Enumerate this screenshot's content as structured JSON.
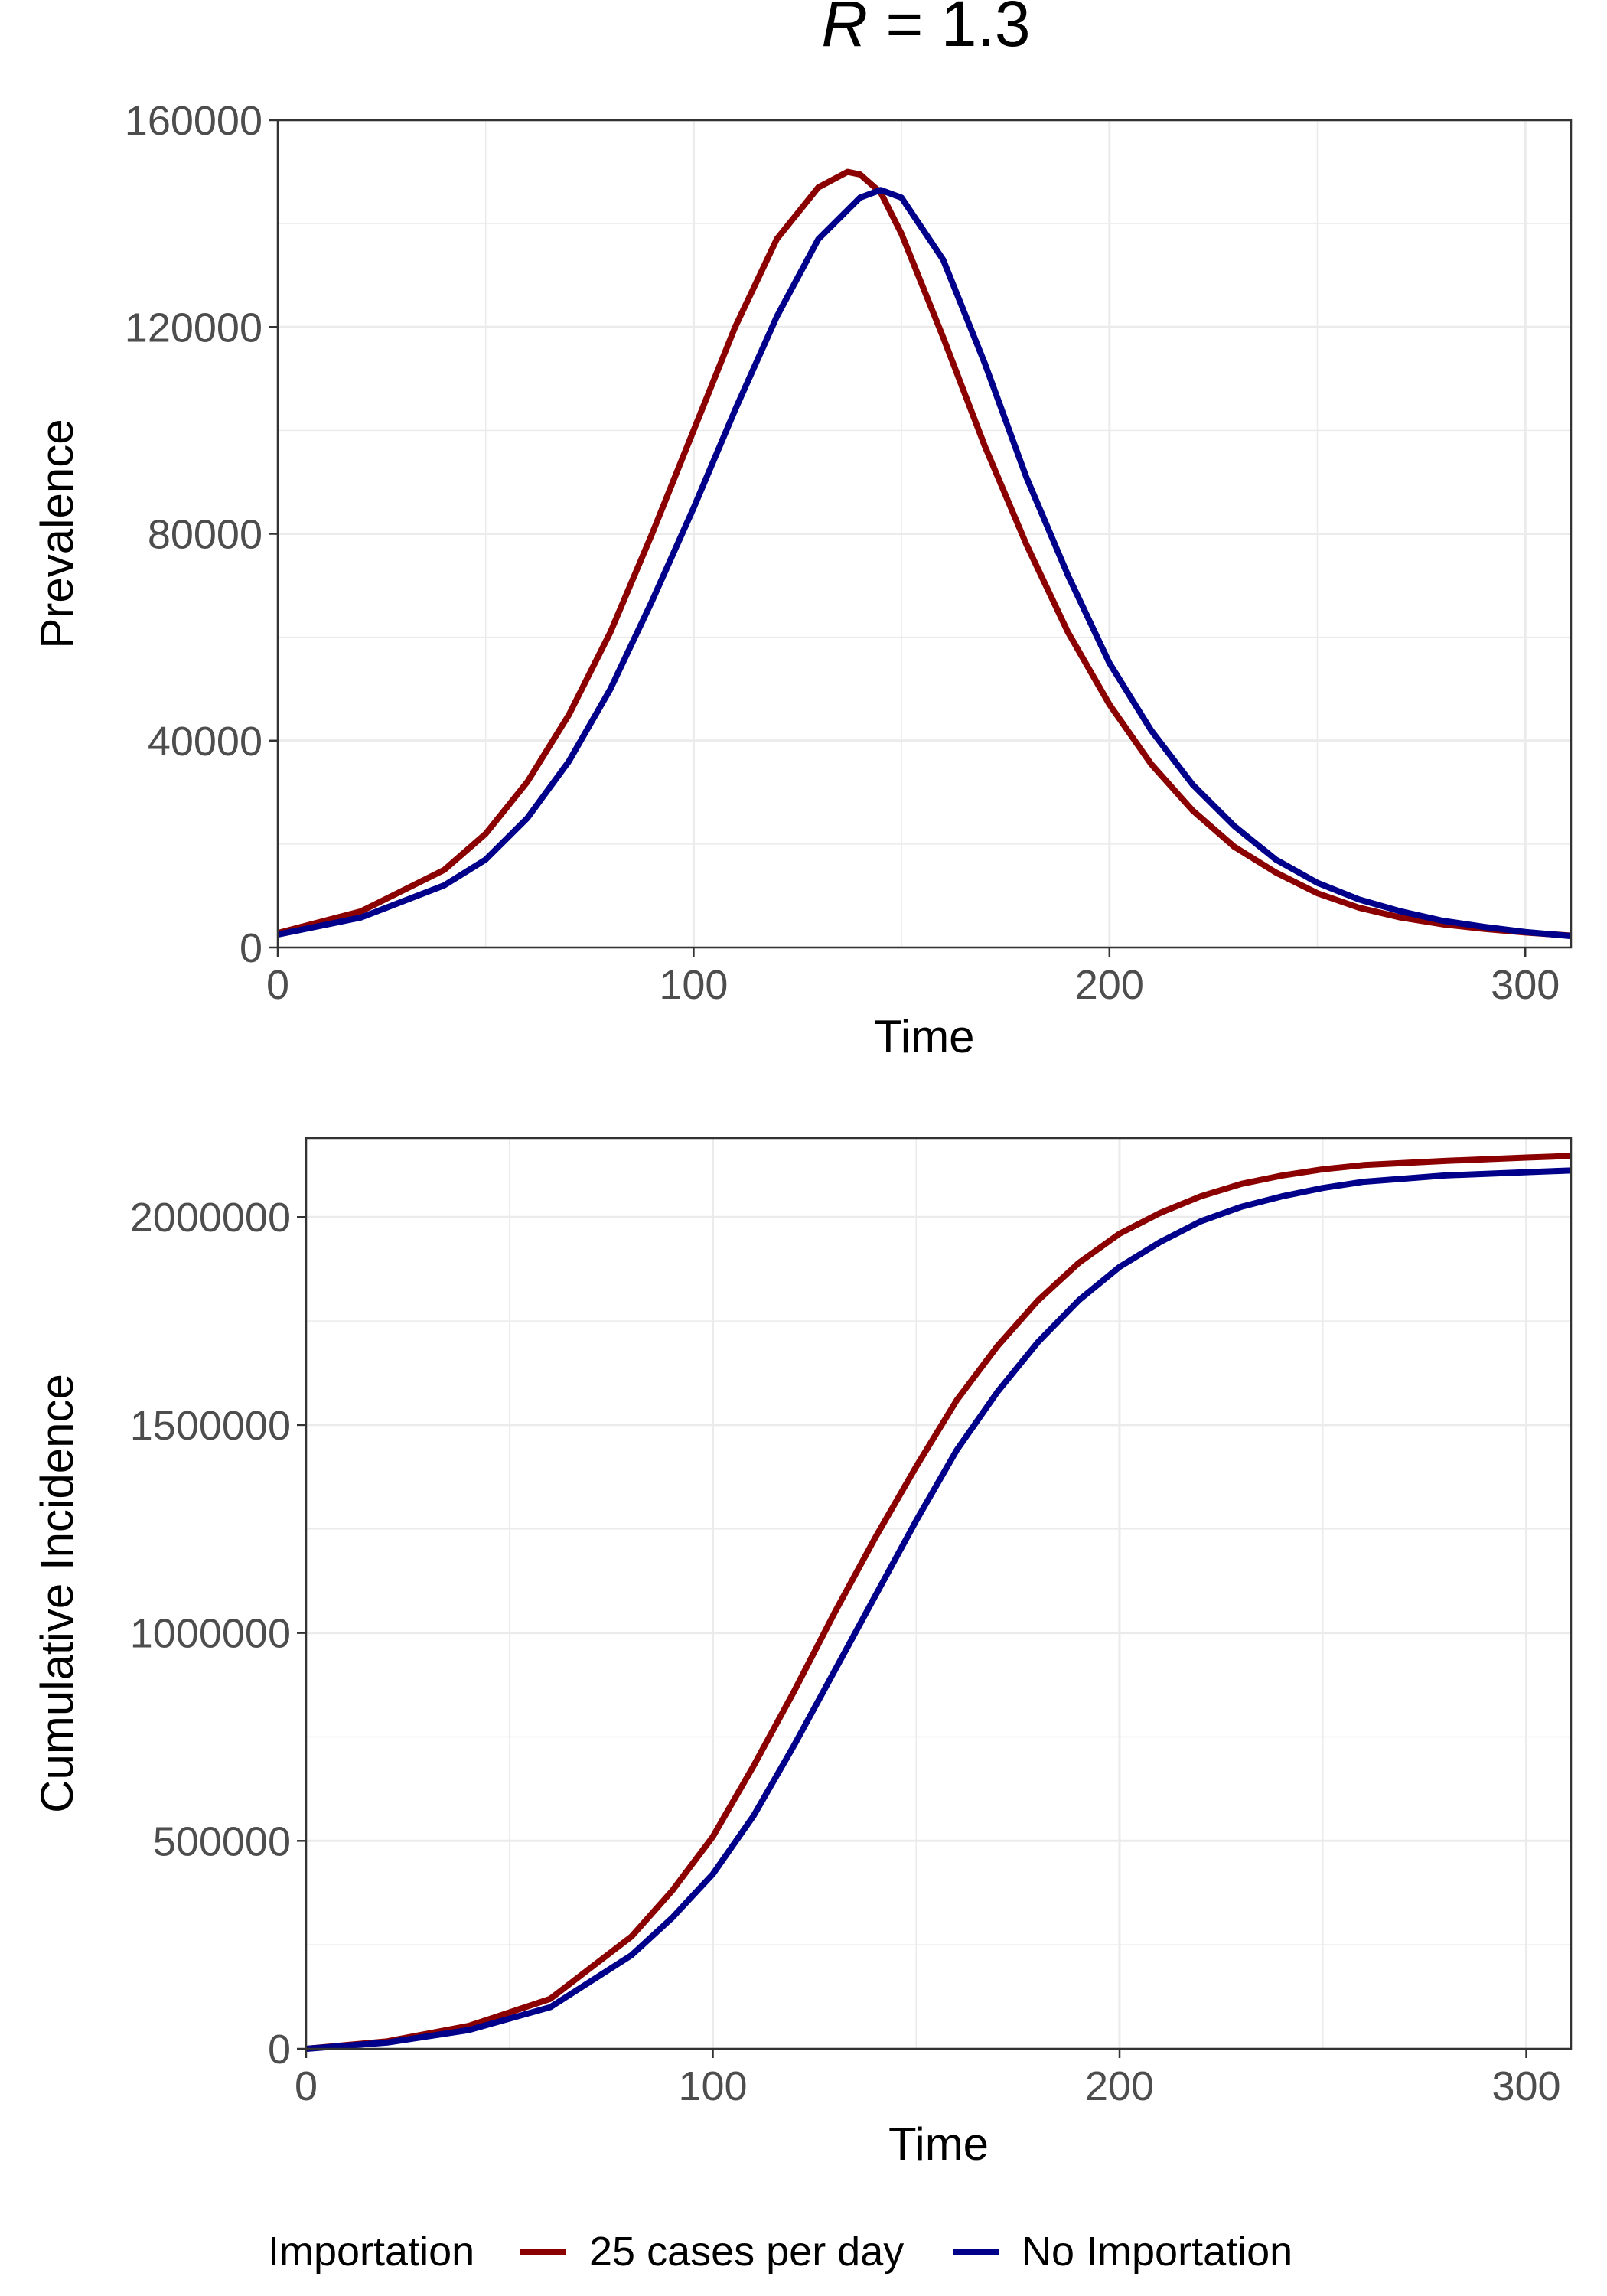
{
  "figure": {
    "title_var": "R",
    "title_rest": " = 1.3"
  },
  "colors": {
    "importation": "#8b0000",
    "no_importation": "#00008b"
  },
  "legend": {
    "title": "Importation",
    "items": [
      {
        "label": "25 cases per day",
        "color": "#8b0000"
      },
      {
        "label": "No Importation",
        "color": "#00008b"
      }
    ]
  },
  "chart_data": [
    {
      "type": "line",
      "title": "R = 1.3",
      "xlabel": "Time",
      "ylabel": "Prevalence",
      "xlim": [
        0,
        311
      ],
      "ylim": [
        0,
        160000
      ],
      "x_ticks": [
        0,
        100,
        200,
        300
      ],
      "y_ticks": [
        0,
        40000,
        80000,
        120000,
        160000
      ],
      "y_tick_labels": [
        "0",
        "40000",
        "80000",
        "120000",
        "160000"
      ],
      "grid": true,
      "series": [
        {
          "name": "25 cases per day",
          "color": "#8b0000",
          "x": [
            0,
            20,
            40,
            50,
            60,
            70,
            80,
            90,
            100,
            110,
            120,
            130,
            137,
            140,
            145,
            150,
            160,
            170,
            180,
            190,
            200,
            210,
            220,
            230,
            240,
            250,
            260,
            270,
            280,
            290,
            300,
            311
          ],
          "y": [
            2800,
            7000,
            15000,
            22000,
            32000,
            45000,
            61000,
            80000,
            100000,
            120000,
            137000,
            147000,
            150000,
            149500,
            146000,
            138000,
            118000,
            97000,
            78000,
            61000,
            47000,
            35500,
            26500,
            19500,
            14500,
            10500,
            7700,
            5800,
            4500,
            3600,
            2900,
            2300
          ]
        },
        {
          "name": "No Importation",
          "color": "#00008b",
          "x": [
            0,
            20,
            40,
            50,
            60,
            70,
            80,
            90,
            100,
            110,
            120,
            130,
            140,
            145,
            150,
            160,
            170,
            180,
            190,
            200,
            210,
            220,
            230,
            240,
            250,
            260,
            270,
            280,
            290,
            300,
            311
          ],
          "y": [
            2500,
            5800,
            12000,
            17000,
            25000,
            36000,
            50000,
            67000,
            85000,
            104000,
            122000,
            137000,
            145000,
            146500,
            145000,
            133000,
            113000,
            91000,
            72000,
            55000,
            42000,
            31500,
            23500,
            17000,
            12500,
            9300,
            7000,
            5200,
            4000,
            3000,
            2200
          ]
        }
      ]
    },
    {
      "type": "line",
      "xlabel": "Time",
      "ylabel": "Cumulative Incidence",
      "xlim": [
        0,
        311
      ],
      "ylim": [
        0,
        2190000
      ],
      "x_ticks": [
        0,
        100,
        200,
        300
      ],
      "y_ticks": [
        0,
        500000,
        1000000,
        1500000,
        2000000
      ],
      "y_tick_labels": [
        "0",
        "500000",
        "1000000",
        "1500000",
        "2000000"
      ],
      "grid": true,
      "series": [
        {
          "name": "25 cases per day",
          "color": "#8b0000",
          "x": [
            0,
            20,
            40,
            60,
            80,
            90,
            100,
            110,
            120,
            130,
            140,
            150,
            160,
            170,
            180,
            190,
            200,
            210,
            220,
            230,
            240,
            250,
            260,
            280,
            300,
            311
          ],
          "y": [
            0,
            18000,
            55000,
            120000,
            270000,
            380000,
            510000,
            680000,
            860000,
            1050000,
            1230000,
            1400000,
            1560000,
            1690000,
            1800000,
            1890000,
            1960000,
            2010000,
            2050000,
            2080000,
            2100000,
            2115000,
            2125000,
            2135000,
            2143000,
            2147000
          ]
        },
        {
          "name": "No Importation",
          "color": "#00008b",
          "x": [
            0,
            20,
            40,
            60,
            80,
            90,
            100,
            110,
            120,
            130,
            140,
            150,
            160,
            170,
            180,
            190,
            200,
            210,
            220,
            230,
            240,
            250,
            260,
            280,
            300,
            311
          ],
          "y": [
            0,
            15000,
            45000,
            100000,
            225000,
            315000,
            420000,
            560000,
            730000,
            910000,
            1090000,
            1270000,
            1440000,
            1580000,
            1700000,
            1800000,
            1880000,
            1940000,
            1990000,
            2025000,
            2050000,
            2070000,
            2085000,
            2100000,
            2108000,
            2112000
          ]
        }
      ]
    }
  ]
}
